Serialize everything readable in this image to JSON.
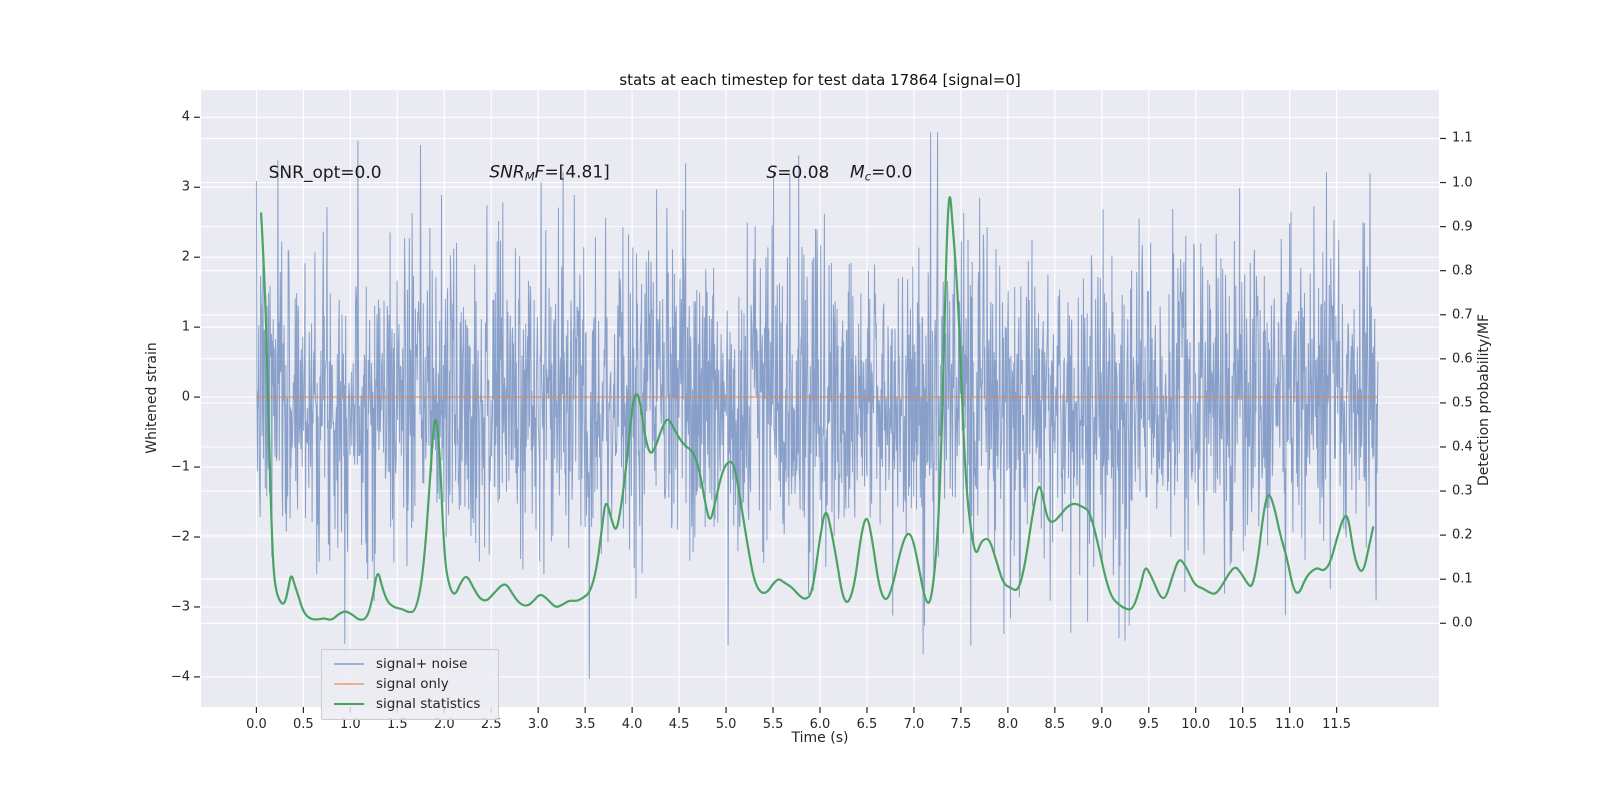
{
  "figure": {
    "title": "stats at each timestep for test data 17864 [signal=0]",
    "background": "#ffffff",
    "axes_background": "#eaeaf2",
    "grid_color": "#ffffff",
    "tick_color": "#262626"
  },
  "axes": {
    "x": {
      "label": "Time (s)",
      "tick_labels": [
        "0.0",
        "0.5",
        "1.0",
        "1.5",
        "2.0",
        "2.5",
        "3.0",
        "3.5",
        "4.0",
        "4.5",
        "5.0",
        "5.5",
        "6.0",
        "6.5",
        "7.0",
        "7.5",
        "8.0",
        "8.5",
        "9.0",
        "9.5",
        "10.0",
        "10.5",
        "11.0",
        "11.5"
      ],
      "tick_values": [
        0,
        0.5,
        1,
        1.5,
        2,
        2.5,
        3,
        3.5,
        4,
        4.5,
        5,
        5.5,
        6,
        6.5,
        7,
        7.5,
        8,
        8.5,
        9,
        9.5,
        10,
        10.5,
        11,
        11.5
      ]
    },
    "y_left": {
      "label": "Whitened strain",
      "tick_labels": [
        "4",
        "3",
        "2",
        "1",
        "0",
        "−1",
        "−2",
        "−3",
        "−4"
      ],
      "tick_values": [
        4,
        3,
        2,
        1,
        0,
        -1,
        -2,
        -3,
        -4
      ]
    },
    "y_right": {
      "label": "Detection probability/MF",
      "tick_labels": [
        "1.1",
        "1.0",
        "0.9",
        "0.8",
        "0.7",
        "0.6",
        "0.5",
        "0.4",
        "0.3",
        "0.2",
        "0.1",
        "0.0"
      ],
      "tick_values": [
        1.1,
        1.0,
        0.9,
        0.8,
        0.7,
        0.6,
        0.5,
        0.4,
        0.3,
        0.2,
        0.1,
        0.0
      ]
    }
  },
  "annotations": [
    {
      "t": 0.13,
      "v": 3.2,
      "segments": [
        {
          "t": "SNR_opt=0.0"
        }
      ]
    },
    {
      "t": 2.48,
      "v": 3.2,
      "segments": [
        {
          "t": "SNR",
          "i": 1
        },
        {
          "t": "M",
          "i": 1,
          "sub": 1
        },
        {
          "t": "F",
          "i": 1
        },
        {
          "t": "=[4.81]"
        }
      ]
    },
    {
      "t": 5.43,
      "v": 3.2,
      "segments": [
        {
          "t": "S",
          "i": 1
        },
        {
          "t": "=0.08"
        }
      ]
    },
    {
      "t": 6.32,
      "v": 3.2,
      "segments": [
        {
          "t": "M",
          "i": 1
        },
        {
          "t": "c",
          "i": 1,
          "sub": 1
        },
        {
          "t": "=0.0"
        }
      ]
    }
  ],
  "legend": {
    "items": [
      {
        "label": "signal+ noise",
        "color": "#9fb1d5"
      },
      {
        "label": "signal only",
        "color": "#eab093"
      },
      {
        "label": "signal statistics",
        "color": "#47a161"
      }
    ]
  },
  "chart_data": {
    "type": "line",
    "title": "stats at each timestep for test data 17864 [signal=0]",
    "xlabel": "Time (s)",
    "ylabel_left": "Whitened strain",
    "ylabel_right": "Detection probability/MF",
    "xlim": [
      -0.59,
      12.59
    ],
    "ylim_left": [
      -4.43,
      4.39
    ],
    "ylim_right": [
      -0.19,
      1.21
    ],
    "grid": true,
    "legend_position": "lower left",
    "series": [
      {
        "name": "signal+ noise",
        "axis": "left",
        "type": "gaussian_noise_line",
        "color": "#4c72b0",
        "alpha": 0.62,
        "params": {
          "n": 2400,
          "t_start": 0.0,
          "t_end": 11.94,
          "sigma": 1.12,
          "seed": 7,
          "observed_max": 3.88,
          "observed_min": -4.07
        }
      },
      {
        "name": "signal only",
        "axis": "left",
        "type": "constant_line",
        "color": "#dd8452",
        "alpha": 0.6,
        "value": 0.0,
        "t_start": 0.0,
        "t_end": 11.94
      },
      {
        "name": "signal statistics",
        "axis": "right",
        "type": "line",
        "color": "#4aa364",
        "points": [
          [
            0.05,
            0.93
          ],
          [
            0.09,
            0.78
          ],
          [
            0.13,
            0.45
          ],
          [
            0.17,
            0.16
          ],
          [
            0.2,
            0.08
          ],
          [
            0.25,
            0.048
          ],
          [
            0.3,
            0.042
          ],
          [
            0.34,
            0.08
          ],
          [
            0.37,
            0.114
          ],
          [
            0.41,
            0.085
          ],
          [
            0.45,
            0.06
          ],
          [
            0.5,
            0.025
          ],
          [
            0.57,
            0.01
          ],
          [
            0.65,
            0.008
          ],
          [
            0.72,
            0.012
          ],
          [
            0.8,
            0.006
          ],
          [
            0.88,
            0.022
          ],
          [
            0.95,
            0.028
          ],
          [
            1.02,
            0.02
          ],
          [
            1.1,
            0.006
          ],
          [
            1.18,
            0.012
          ],
          [
            1.24,
            0.06
          ],
          [
            1.29,
            0.125
          ],
          [
            1.34,
            0.08
          ],
          [
            1.4,
            0.046
          ],
          [
            1.48,
            0.035
          ],
          [
            1.55,
            0.033
          ],
          [
            1.62,
            0.024
          ],
          [
            1.7,
            0.028
          ],
          [
            1.78,
            0.12
          ],
          [
            1.85,
            0.33
          ],
          [
            1.9,
            0.49
          ],
          [
            1.95,
            0.4
          ],
          [
            2.0,
            0.15
          ],
          [
            2.05,
            0.085
          ],
          [
            2.11,
            0.06
          ],
          [
            2.18,
            0.095
          ],
          [
            2.24,
            0.11
          ],
          [
            2.31,
            0.08
          ],
          [
            2.38,
            0.055
          ],
          [
            2.45,
            0.05
          ],
          [
            2.52,
            0.066
          ],
          [
            2.6,
            0.085
          ],
          [
            2.66,
            0.09
          ],
          [
            2.73,
            0.065
          ],
          [
            2.8,
            0.045
          ],
          [
            2.88,
            0.038
          ],
          [
            2.95,
            0.05
          ],
          [
            3.02,
            0.068
          ],
          [
            3.1,
            0.055
          ],
          [
            3.18,
            0.035
          ],
          [
            3.26,
            0.042
          ],
          [
            3.33,
            0.052
          ],
          [
            3.41,
            0.05
          ],
          [
            3.48,
            0.058
          ],
          [
            3.55,
            0.07
          ],
          [
            3.62,
            0.12
          ],
          [
            3.68,
            0.22
          ],
          [
            3.72,
            0.285
          ],
          [
            3.78,
            0.235
          ],
          [
            3.83,
            0.205
          ],
          [
            3.88,
            0.26
          ],
          [
            3.94,
            0.36
          ],
          [
            4.0,
            0.49
          ],
          [
            4.04,
            0.525
          ],
          [
            4.08,
            0.51
          ],
          [
            4.13,
            0.43
          ],
          [
            4.19,
            0.38
          ],
          [
            4.25,
            0.4
          ],
          [
            4.32,
            0.445
          ],
          [
            4.38,
            0.468
          ],
          [
            4.45,
            0.44
          ],
          [
            4.52,
            0.413
          ],
          [
            4.58,
            0.4
          ],
          [
            4.65,
            0.39
          ],
          [
            4.72,
            0.345
          ],
          [
            4.78,
            0.27
          ],
          [
            4.83,
            0.225
          ],
          [
            4.89,
            0.28
          ],
          [
            4.96,
            0.345
          ],
          [
            5.03,
            0.37
          ],
          [
            5.09,
            0.36
          ],
          [
            5.16,
            0.27
          ],
          [
            5.23,
            0.175
          ],
          [
            5.3,
            0.095
          ],
          [
            5.37,
            0.068
          ],
          [
            5.44,
            0.07
          ],
          [
            5.5,
            0.09
          ],
          [
            5.56,
            0.102
          ],
          [
            5.62,
            0.092
          ],
          [
            5.7,
            0.082
          ],
          [
            5.78,
            0.062
          ],
          [
            5.85,
            0.053
          ],
          [
            5.92,
            0.07
          ],
          [
            6.0,
            0.195
          ],
          [
            6.06,
            0.266
          ],
          [
            6.12,
            0.21
          ],
          [
            6.18,
            0.14
          ],
          [
            6.24,
            0.06
          ],
          [
            6.3,
            0.042
          ],
          [
            6.37,
            0.09
          ],
          [
            6.44,
            0.205
          ],
          [
            6.5,
            0.25
          ],
          [
            6.56,
            0.185
          ],
          [
            6.63,
            0.08
          ],
          [
            6.7,
            0.047
          ],
          [
            6.77,
            0.08
          ],
          [
            6.85,
            0.16
          ],
          [
            6.92,
            0.205
          ],
          [
            6.98,
            0.2
          ],
          [
            7.05,
            0.13
          ],
          [
            7.12,
            0.05
          ],
          [
            7.18,
            0.043
          ],
          [
            7.24,
            0.16
          ],
          [
            7.28,
            0.32
          ],
          [
            7.32,
            0.62
          ],
          [
            7.35,
            0.88
          ],
          [
            7.38,
            0.99
          ],
          [
            7.41,
            0.91
          ],
          [
            7.45,
            0.8
          ],
          [
            7.49,
            0.64
          ],
          [
            7.52,
            0.46
          ],
          [
            7.56,
            0.3
          ],
          [
            7.61,
            0.205
          ],
          [
            7.66,
            0.152
          ],
          [
            7.71,
            0.183
          ],
          [
            7.76,
            0.193
          ],
          [
            7.81,
            0.188
          ],
          [
            7.88,
            0.14
          ],
          [
            7.95,
            0.09
          ],
          [
            8.03,
            0.08
          ],
          [
            8.11,
            0.072
          ],
          [
            8.18,
            0.13
          ],
          [
            8.25,
            0.23
          ],
          [
            8.31,
            0.305
          ],
          [
            8.35,
            0.313
          ],
          [
            8.42,
            0.235
          ],
          [
            8.48,
            0.228
          ],
          [
            8.55,
            0.243
          ],
          [
            8.63,
            0.265
          ],
          [
            8.71,
            0.273
          ],
          [
            8.79,
            0.265
          ],
          [
            8.87,
            0.255
          ],
          [
            8.95,
            0.19
          ],
          [
            9.03,
            0.11
          ],
          [
            9.1,
            0.06
          ],
          [
            9.18,
            0.042
          ],
          [
            9.26,
            0.032
          ],
          [
            9.33,
            0.031
          ],
          [
            9.41,
            0.08
          ],
          [
            9.46,
            0.132
          ],
          [
            9.52,
            0.11
          ],
          [
            9.58,
            0.08
          ],
          [
            9.63,
            0.058
          ],
          [
            9.68,
            0.056
          ],
          [
            9.75,
            0.105
          ],
          [
            9.82,
            0.148
          ],
          [
            9.88,
            0.135
          ],
          [
            9.94,
            0.108
          ],
          [
            10.0,
            0.085
          ],
          [
            10.07,
            0.08
          ],
          [
            10.14,
            0.07
          ],
          [
            10.21,
            0.065
          ],
          [
            10.28,
            0.085
          ],
          [
            10.35,
            0.112
          ],
          [
            10.42,
            0.13
          ],
          [
            10.48,
            0.115
          ],
          [
            10.55,
            0.09
          ],
          [
            10.6,
            0.08
          ],
          [
            10.66,
            0.14
          ],
          [
            10.72,
            0.25
          ],
          [
            10.77,
            0.3
          ],
          [
            10.83,
            0.27
          ],
          [
            10.9,
            0.2
          ],
          [
            10.97,
            0.15
          ],
          [
            11.04,
            0.075
          ],
          [
            11.1,
            0.065
          ],
          [
            11.17,
            0.103
          ],
          [
            11.24,
            0.12
          ],
          [
            11.3,
            0.126
          ],
          [
            11.36,
            0.118
          ],
          [
            11.43,
            0.135
          ],
          [
            11.5,
            0.19
          ],
          [
            11.57,
            0.24
          ],
          [
            11.62,
            0.247
          ],
          [
            11.68,
            0.16
          ],
          [
            11.74,
            0.118
          ],
          [
            11.79,
            0.12
          ],
          [
            11.84,
            0.17
          ],
          [
            11.89,
            0.218
          ]
        ]
      }
    ]
  }
}
